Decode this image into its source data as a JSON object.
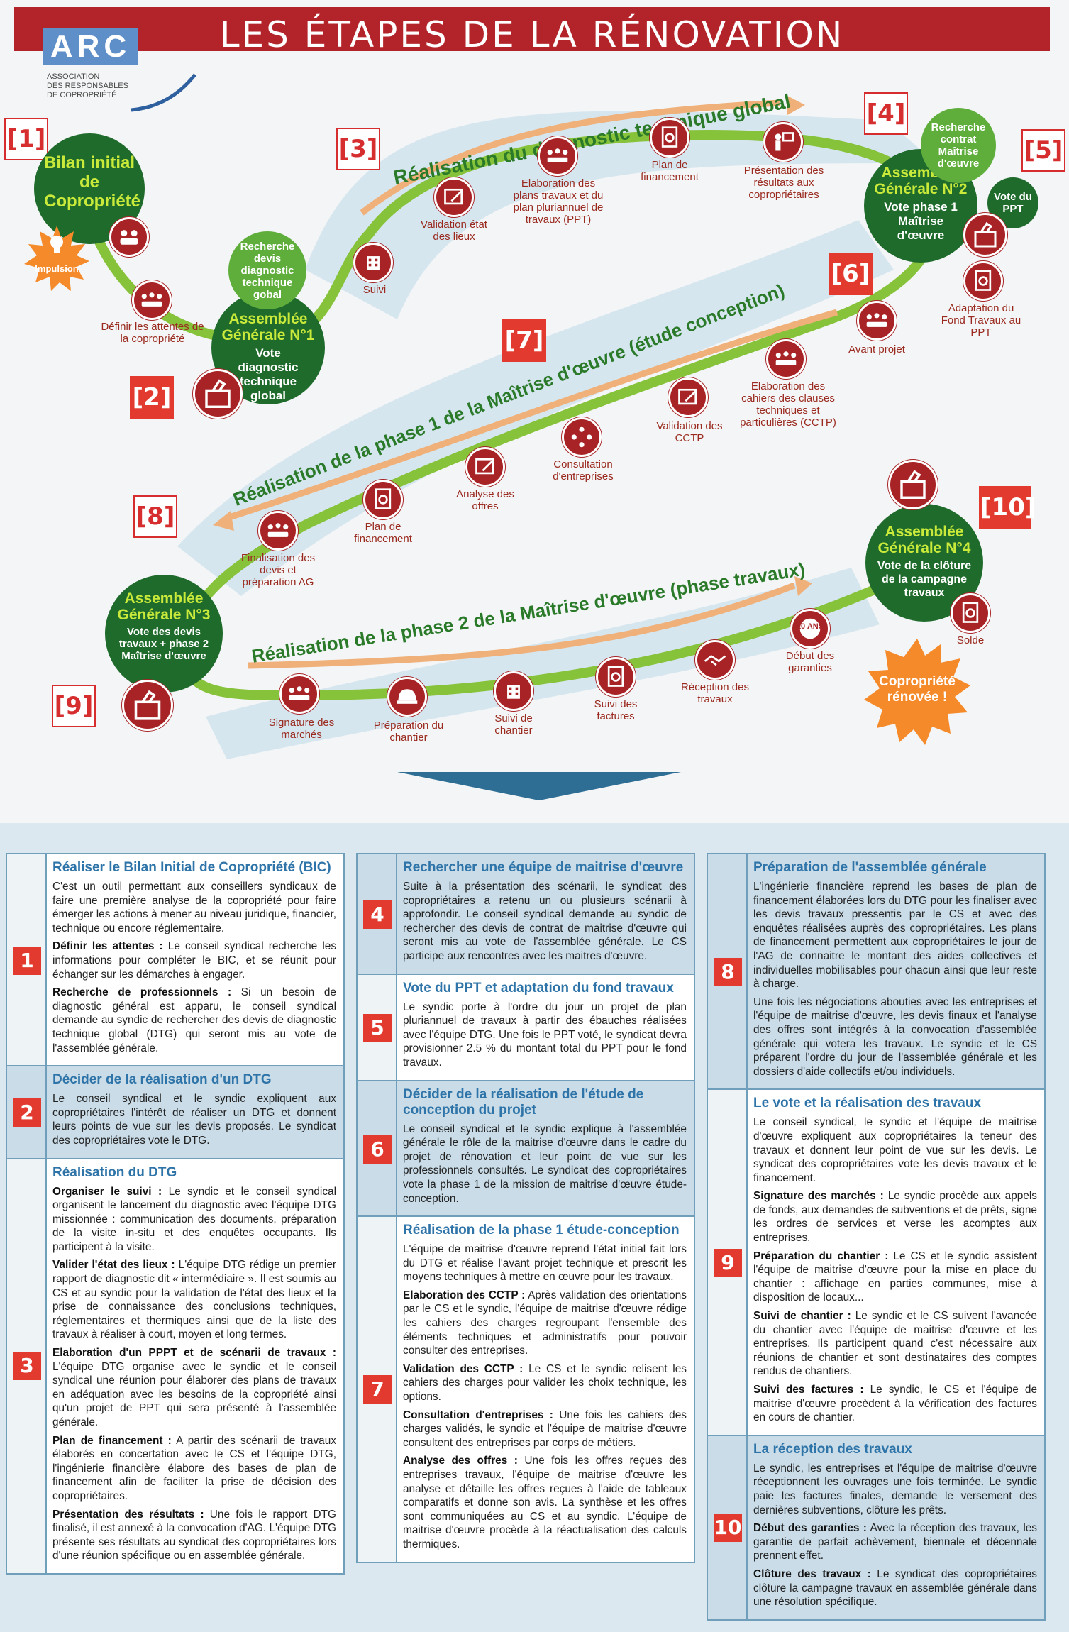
{
  "banner": {
    "title": "LES ÉTAPES DE LA RÉNOVATION"
  },
  "logo": {
    "mark": "ARC",
    "line1": "Association",
    "line2": "des responsables",
    "line3": "de copropriété"
  },
  "steps": [
    "[1]",
    "[2]",
    "[3]",
    "[4]",
    "[5]",
    "[6]",
    "[7]",
    "[8]",
    "[9]",
    "[10]"
  ],
  "phases": {
    "p3": "Réalisation du diagnostic technique global",
    "p7": "Réalisation de la phase 1 de la Maîtrise d'œuvre (étude conception)",
    "p9": "Réalisation de la phase 2 de la Maîtrise d'œuvre (phase travaux)"
  },
  "circles": {
    "bic": "Bilan initial de Copropriété",
    "ag1_title": "Assemblée Générale N°1",
    "ag1_sub": "Vote diagnostic technique global",
    "ag2_title": "Assemblée Générale N°2",
    "ag2_sub": "Vote phase 1 Maîtrise d'œuvre",
    "ag3_title": "Assemblée Générale N°3",
    "ag3_sub": "Vote des devis travaux + phase 2 Maîtrise d'œuvre",
    "ag4_title": "Assemblée Générale N°4",
    "ag4_sub": "Vote de la clôture de la campagne travaux",
    "recherche_devis": "Recherche devis diagnostic technique gobal",
    "recherche_contrat": "Recherche contrat Maîtrise d'œuvre",
    "vote_ppt": "Vote du PPT",
    "impulsion": "Impulsion",
    "renovee": "Copropriété rénovée !"
  },
  "labels": {
    "definir": "Définir les attentes de la copropriété",
    "suivi": "Suivi",
    "validation_etat": "Validation état des lieux",
    "elaboration_plans": "Elaboration des plans travaux et du plan pluriannuel de travaux (PPT)",
    "plan_fin1": "Plan de financement",
    "presentation": "Présentation des résultats aux copropriétaires",
    "adaptation": "Adaptation du Fond Travaux au PPT",
    "avant_projet": "Avant projet",
    "elaboration_cctp": "Elaboration des cahiers des clauses techniques et particulières (CCTP)",
    "validation_cctp": "Validation des CCTP",
    "consultation": "Consultation d'entreprises",
    "analyse": "Analyse des offres",
    "plan_fin2": "Plan de financement",
    "finalisation": "Finalisation des devis et préparation AG",
    "signature": "Signature des marchés",
    "preparation": "Préparation du chantier",
    "suivi_chantier": "Suivi de chantier",
    "suivi_factures": "Suivi des factures",
    "reception": "Réception des travaux",
    "debut_garanties": "Début des garanties",
    "solde": "Solde",
    "ten_years": "10 ANS"
  },
  "col1": [
    {
      "num": "1",
      "title": "Réaliser le Bilan Initial de Copropriété (BIC)",
      "paras": [
        {
          "b": "",
          "t": "C'est un outil permettant aux conseillers syndicaux de faire une première analyse de la copropriété pour faire émerger les actions à mener au niveau juridique, financier, technique ou encore réglementaire."
        },
        {
          "b": "Définir les attentes :",
          "t": " Le conseil syndical recherche les informations pour compléter le BIC, et se réunit pour échanger sur les démarches à engager."
        },
        {
          "b": "Recherche de professionnels :",
          "t": " Si un besoin de diagnostic général est apparu, le conseil syndical demande au syndic de rechercher des devis de diagnostic technique global (DTG) qui seront mis au vote de l'assemblée générale."
        }
      ]
    },
    {
      "num": "2",
      "title": "Décider de la réalisation d'un DTG",
      "tint": true,
      "paras": [
        {
          "b": "",
          "t": "Le conseil syndical et le syndic expliquent aux copropriétaires l'intérêt de réaliser un DTG et donnent leurs points de vue sur les devis proposés. Le syndicat des copropriétaires vote le DTG."
        }
      ]
    },
    {
      "num": "3",
      "title": "Réalisation du DTG",
      "paras": [
        {
          "b": "Organiser le suivi :",
          "t": " Le syndic et le conseil syndical organisent le lancement du diagnostic avec l'équipe DTG missionnée : communication des documents, préparation de la visite in-situ et des enquêtes occupants. Ils participent à la visite."
        },
        {
          "b": "Valider l'état des lieux :",
          "t": " L'équipe DTG rédige un premier rapport de diagnostic dit « intermédiaire ». Il est soumis au CS et au syndic pour la validation de l'état des lieux et la prise de connaissance des conclusions techniques, réglementaires et thermiques ainsi que de la liste des travaux à réaliser à court, moyen et long termes."
        },
        {
          "b": "Elaboration d'un PPPT et de scénarii de travaux :",
          "t": " L'équipe DTG organise avec le syndic et le conseil syndical une réunion pour élaborer des plans de travaux en adéquation avec les besoins de la copropriété ainsi qu'un projet de PPT qui sera présenté à l'assemblée générale."
        },
        {
          "b": "Plan de financement :",
          "t": " A partir des scénarii de travaux élaborés en concertation avec le CS et l'équipe DTG, l'ingénierie financière élabore des bases de plan de financement afin de faciliter la prise de décision des copropriétaires."
        },
        {
          "b": "Présentation des résultats :",
          "t": " Une fois le rapport DTG finalisé, il est annexé à la convocation d'AG. L'équipe DTG présente ses résultats au syndicat des copropriétaires lors d'une réunion spécifique ou en assemblée générale."
        }
      ]
    }
  ],
  "col2": [
    {
      "num": "4",
      "title": "Rechercher une équipe de maitrise d'œuvre",
      "tint": true,
      "paras": [
        {
          "b": "",
          "t": "Suite à la présentation des scénarii, le syndicat des copropriétaires a retenu un ou plusieurs scénarii à approfondir. Le conseil syndical demande au syndic de rechercher des devis de contrat de maitrise d'œuvre qui seront mis au vote de l'assemblée générale. Le CS participe aux rencontres avec les maitres d'œuvre."
        }
      ]
    },
    {
      "num": "5",
      "title": "Vote du PPT et adaptation du fond travaux",
      "paras": [
        {
          "b": "",
          "t": "Le syndic porte à l'ordre du jour un projet de plan pluriannuel de travaux à partir des ébauches réalisées avec l'équipe DTG. Une fois le PPT voté, le syndicat devra provisionner 2.5 % du montant total du PPT pour le fond travaux."
        }
      ]
    },
    {
      "num": "6",
      "title": "Décider de la réalisation de l'étude de conception du projet",
      "tint": true,
      "paras": [
        {
          "b": "",
          "t": "Le conseil syndical et le syndic explique à l'assemblée générale le rôle de la maitrise d'œuvre dans le cadre du projet de rénovation et leur point de vue sur les professionnels consultés. Le syndicat des copropriétaires vote la phase 1 de la mission de maitrise d'œuvre étude-conception."
        }
      ]
    },
    {
      "num": "7",
      "title": "Réalisation de la phase 1 étude-conception",
      "paras": [
        {
          "b": "",
          "t": "L'équipe de maitrise d'œuvre reprend l'état initial fait lors du DTG et réalise l'avant projet technique et prescrit les moyens techniques à mettre en œuvre pour les travaux."
        },
        {
          "b": "Elaboration des CCTP :",
          "t": " Après validation des orientations par le CS et le syndic, l'équipe de maitrise d'œuvre rédige les cahiers des charges regroupant l'ensemble des éléments techniques et administratifs pour pouvoir consulter des entreprises."
        },
        {
          "b": "Validation des CCTP :",
          "t": " Le CS et le syndic relisent les cahiers des charges pour valider les choix technique, les options."
        },
        {
          "b": "Consultation d'entreprises :",
          "t": " Une fois les cahiers des charges validés, le syndic et l'équipe de maitrise d'œuvre consultent des entreprises par corps de métiers."
        },
        {
          "b": "Analyse des offres :",
          "t": " Une fois les offres reçues des entreprises travaux, l'équipe de maitrise d'œuvre les analyse et détaille les offres reçues à l'aide de tableaux comparatifs et donne son avis. La synthèse et les offres sont communiquées au CS et au syndic. L'équipe de maitrise d'œuvre procède à la réactualisation des calculs thermiques."
        }
      ]
    }
  ],
  "col3": [
    {
      "num": "8",
      "title": "Préparation de l'assemblée générale",
      "tint": true,
      "paras": [
        {
          "b": "",
          "t": "L'ingénierie financière reprend les bases de plan de financement élaborées lors du DTG pour les finaliser avec les devis travaux pressentis par le CS et avec des enquêtes réalisées auprès des copropriétaires. Les plans de financement permettent aux copropriétaires le jour de l'AG de connaitre le montant des aides collectives et individuelles mobilisables pour chacun ainsi que leur reste à charge."
        },
        {
          "b": "",
          "t": "Une fois les négociations abouties avec les entreprises et l'équipe de maitrise d'œuvre, les devis finaux et l'analyse des offres sont intégrés à la convocation d'assemblée générale qui votera les travaux. Le syndic et le CS préparent l'ordre du jour de l'assemblée générale et les dossiers d'aide collectifs et/ou individuels."
        }
      ]
    },
    {
      "num": "9",
      "title": "Le vote et la réalisation des travaux",
      "paras": [
        {
          "b": "",
          "t": "Le conseil syndical, le syndic et l'équipe de maitrise d'œuvre expliquent aux copropriétaires la teneur des travaux et donnent leur point de vue sur les devis. Le syndicat des copropriétaires vote les devis travaux et le financement."
        },
        {
          "b": "Signature des marchés :",
          "t": " Le syndic procède aux appels de fonds, aux demandes de subventions et de prêts, signe les ordres de services et verse les acomptes aux entreprises."
        },
        {
          "b": "Préparation du chantier :",
          "t": " Le CS et le syndic assistent l'équipe de maitrise d'œuvre pour la mise en place du chantier : affichage en parties communes, mise à disposition de locaux..."
        },
        {
          "b": "Suivi de chantier :",
          "t": " Le syndic et le CS suivent l'avancée du chantier avec l'équipe de maitrise d'œuvre et les entreprises. Ils participent quand c'est nécessaire aux réunions de chantier et sont destinataires des comptes rendus de chantiers."
        },
        {
          "b": "Suivi des factures :",
          "t": " Le syndic, le CS et l'équipe de maitrise d'œuvre procèdent à la vérification des factures en cours de chantier."
        }
      ]
    },
    {
      "num": "10",
      "title": "La réception des travaux",
      "tint": true,
      "paras": [
        {
          "b": "",
          "t": "Le syndic, les entreprises et l'équipe de maitrise d'œuvre réceptionnent les ouvrages une fois terminée. Le syndic paie les factures finales, demande le versement des dernières subventions, clôture les prêts."
        },
        {
          "b": "Début des garanties :",
          "t": " Avec la réception des travaux, les garantie de parfait achèvement, biennale et décennale prennent effet."
        },
        {
          "b": "Clôture des travaux :",
          "t": " Le syndicat des copropriétaires clôture la campagne travaux en assemblée générale dans une résolution spécifique."
        }
      ]
    }
  ]
}
